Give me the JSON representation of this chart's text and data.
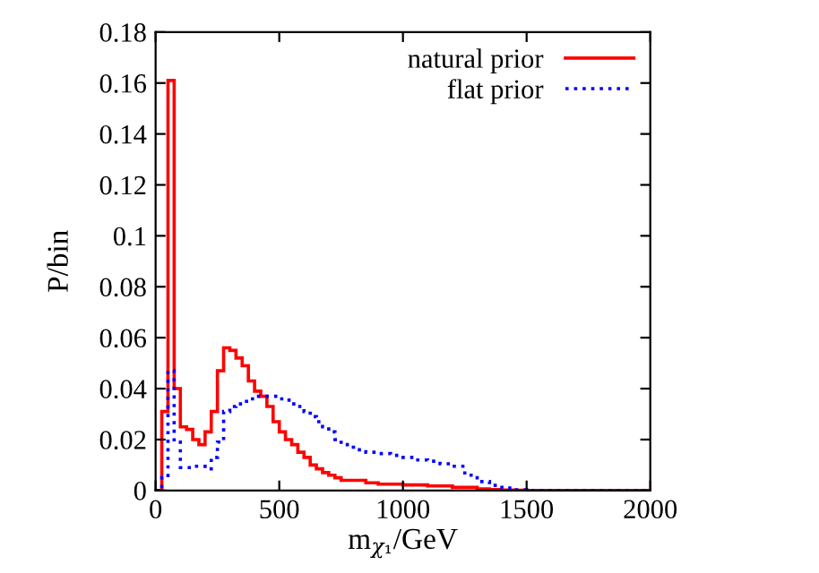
{
  "chart_data": {
    "type": "histogram",
    "xlabel": "m$_{χ₁}$/GeV",
    "ylabel": "P/bin",
    "bins": [
      0,
      25,
      50,
      75,
      100,
      125,
      150,
      175,
      200,
      225,
      250,
      275,
      300,
      325,
      350,
      375,
      400,
      425,
      450,
      475,
      500,
      525,
      550,
      575,
      600,
      625,
      650,
      675,
      700,
      725,
      750,
      775,
      800,
      850,
      900,
      950,
      1000,
      1050,
      1100,
      1150,
      1200,
      1250,
      1300,
      1350,
      1400,
      1450,
      1500,
      2000
    ],
    "series": [
      {
        "name": "natural prior",
        "color": "#ff0000",
        "line_style": "solid",
        "values": [
          0,
          0.031,
          0.161,
          0.04,
          0.025,
          0.024,
          0.02,
          0.018,
          0.023,
          0.031,
          0.047,
          0.056,
          0.055,
          0.052,
          0.049,
          0.043,
          0.039,
          0.037,
          0.033,
          0.027,
          0.023,
          0.02,
          0.018,
          0.015,
          0.013,
          0.01,
          0.0085,
          0.007,
          0.006,
          0.005,
          0.004,
          0.004,
          0.004,
          0.003,
          0.0025,
          0.0025,
          0.0022,
          0.0022,
          0.0018,
          0.0018,
          0.0012,
          0.0012,
          0.0006,
          0.0004,
          0.0002,
          0.0001,
          0
        ]
      },
      {
        "name": "flat prior",
        "color": "#0000ff",
        "line_style": "dotted",
        "values": [
          0,
          0.005,
          0.047,
          0.019,
          0.009,
          0.009,
          0.0095,
          0.0095,
          0.0085,
          0.013,
          0.019,
          0.031,
          0.033,
          0.034,
          0.035,
          0.036,
          0.037,
          0.037,
          0.037,
          0.037,
          0.036,
          0.0355,
          0.034,
          0.033,
          0.031,
          0.029,
          0.027,
          0.025,
          0.023,
          0.02,
          0.018,
          0.017,
          0.016,
          0.015,
          0.0145,
          0.0138,
          0.013,
          0.012,
          0.0115,
          0.0105,
          0.0095,
          0.006,
          0.0035,
          0.002,
          0.001,
          0.0003,
          0
        ]
      }
    ],
    "xlim": [
      0,
      2000
    ],
    "xticks": [
      0,
      500,
      1000,
      1500,
      2000
    ],
    "ylim": [
      0,
      0.18
    ],
    "yticks": [
      0,
      0.02,
      0.04,
      0.06,
      0.08,
      0.1,
      0.12,
      0.14,
      0.16,
      0.18
    ],
    "grid": false,
    "legend": "top right"
  }
}
